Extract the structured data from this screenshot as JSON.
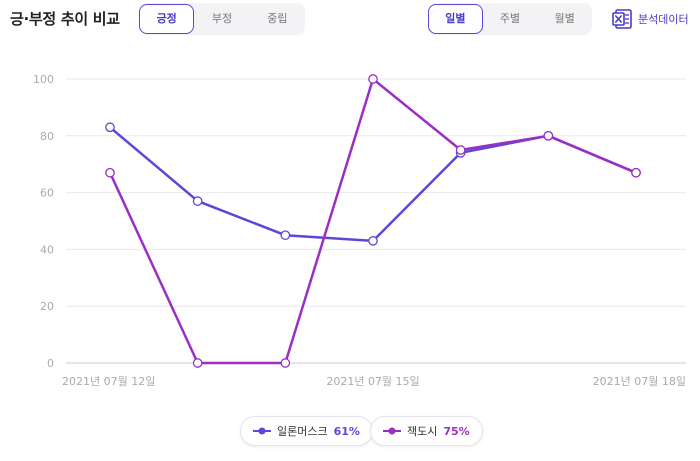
{
  "header": {
    "title": "긍·부정 추이 비교"
  },
  "sentiment_tabs": [
    {
      "label": "긍정",
      "active": true
    },
    {
      "label": "부정",
      "active": false
    },
    {
      "label": "중립",
      "active": false
    }
  ],
  "period_tabs": [
    {
      "label": "일별",
      "active": true
    },
    {
      "label": "주별",
      "active": false
    },
    {
      "label": "월별",
      "active": false
    }
  ],
  "export": {
    "label": "분석데이터",
    "icon": "excel-icon"
  },
  "legend": [
    {
      "name": "일론머스크",
      "pct": "61%",
      "color": "#5a48d8"
    },
    {
      "name": "잭도시",
      "pct": "75%",
      "color": "#9b2fc4"
    }
  ],
  "chart_data": {
    "type": "line",
    "x_tick_labels": [
      "2021년 07월 12일",
      "2021년 07월 15일",
      "2021년 07월 18일"
    ],
    "x": [
      "2021-07-12",
      "2021-07-13",
      "2021-07-14",
      "2021-07-15",
      "2021-07-16",
      "2021-07-17",
      "2021-07-18"
    ],
    "ylim": [
      0,
      100
    ],
    "yticks": [
      0,
      20,
      40,
      60,
      80,
      100
    ],
    "grid": true,
    "legend_position": "bottom-center",
    "series": [
      {
        "name": "일론머스크",
        "color": "#5a48d8",
        "values": [
          83,
          57,
          45,
          43,
          74,
          80,
          67
        ]
      },
      {
        "name": "잭도시",
        "color": "#9b2fc4",
        "values": [
          67,
          0,
          0,
          100,
          75,
          80,
          67
        ]
      }
    ]
  }
}
